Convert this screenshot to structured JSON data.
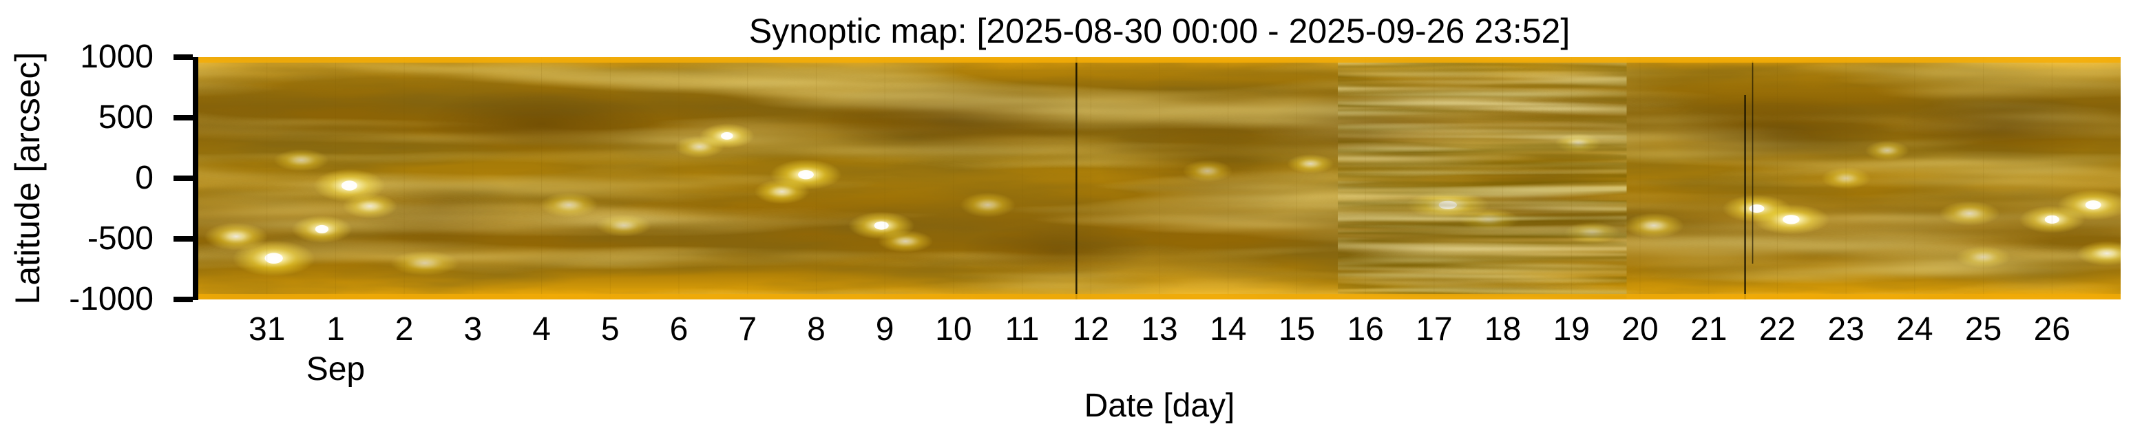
{
  "chart_data": {
    "type": "heatmap",
    "title": "Synoptic map: [2025-08-30 00:00 - 2025-09-26 23:52]",
    "xlabel": "Date [day]",
    "ylabel": "Latitude [arcsec]",
    "x_start": "2025-08-30 00:00",
    "x_end": "2025-09-26 23:52",
    "x_range_days": 28,
    "ylim": [
      -1000,
      1000
    ],
    "grid": false,
    "legend": false,
    "y_ticks": [
      {
        "label": "1000",
        "lat": 1000
      },
      {
        "label": "500",
        "lat": 500
      },
      {
        "label": "0",
        "lat": 0
      },
      {
        "label": "-500",
        "lat": -500
      },
      {
        "label": "-1000",
        "lat": -1000
      }
    ],
    "x_ticks": [
      {
        "label": "31",
        "day": 1
      },
      {
        "label": "1",
        "day": 2
      },
      {
        "label": "2",
        "day": 3
      },
      {
        "label": "3",
        "day": 4
      },
      {
        "label": "4",
        "day": 5
      },
      {
        "label": "5",
        "day": 6
      },
      {
        "label": "6",
        "day": 7
      },
      {
        "label": "7",
        "day": 8
      },
      {
        "label": "8",
        "day": 9
      },
      {
        "label": "9",
        "day": 10
      },
      {
        "label": "10",
        "day": 11
      },
      {
        "label": "11",
        "day": 12
      },
      {
        "label": "12",
        "day": 13
      },
      {
        "label": "13",
        "day": 14
      },
      {
        "label": "14",
        "day": 15
      },
      {
        "label": "15",
        "day": 16
      },
      {
        "label": "16",
        "day": 17
      },
      {
        "label": "17",
        "day": 18
      },
      {
        "label": "18",
        "day": 19
      },
      {
        "label": "19",
        "day": 20
      },
      {
        "label": "20",
        "day": 21
      },
      {
        "label": "21",
        "day": 22
      },
      {
        "label": "22",
        "day": 23
      },
      {
        "label": "23",
        "day": 24
      },
      {
        "label": "24",
        "day": 25
      },
      {
        "label": "25",
        "day": 26
      },
      {
        "label": "26",
        "day": 27
      }
    ],
    "month_label": {
      "text": "Sep",
      "day": 2
    },
    "colors": {
      "background": "#ffffff",
      "axis": "#000000",
      "map_dark": "#8a6205",
      "map_mid": "#b08309",
      "map_bright": "#f2ab07",
      "highlight": "#ffffff",
      "gap_line": "#141000"
    },
    "gradient_stops": [
      {
        "offset": 0.0,
        "color": "#f6b20c"
      },
      {
        "offset": 0.02,
        "color": "#e3a008"
      },
      {
        "offset": 0.055,
        "color": "#b68409"
      },
      {
        "offset": 0.12,
        "color": "#9c7107"
      },
      {
        "offset": 0.2,
        "color": "#8c6406"
      },
      {
        "offset": 0.3,
        "color": "#8e6505"
      },
      {
        "offset": 0.42,
        "color": "#a57a08"
      },
      {
        "offset": 0.5,
        "color": "#ad7f09"
      },
      {
        "offset": 0.58,
        "color": "#a07407"
      },
      {
        "offset": 0.68,
        "color": "#926706"
      },
      {
        "offset": 0.78,
        "color": "#936805"
      },
      {
        "offset": 0.88,
        "color": "#a87a07"
      },
      {
        "offset": 0.95,
        "color": "#cf9608"
      },
      {
        "offset": 0.985,
        "color": "#eca908"
      },
      {
        "offset": 1.0,
        "color": "#f6b20c"
      }
    ],
    "active_regions": [
      {
        "day": 0.55,
        "lat": -480,
        "rx": 46,
        "ry": 20,
        "intensity": 0.85
      },
      {
        "day": 1.1,
        "lat": -660,
        "rx": 60,
        "ry": 26,
        "intensity": 1.0
      },
      {
        "day": 1.5,
        "lat": 150,
        "rx": 40,
        "ry": 16,
        "intensity": 0.6
      },
      {
        "day": 1.8,
        "lat": -420,
        "rx": 44,
        "ry": 20,
        "intensity": 0.9
      },
      {
        "day": 2.2,
        "lat": -60,
        "rx": 52,
        "ry": 24,
        "intensity": 0.95
      },
      {
        "day": 2.5,
        "lat": -230,
        "rx": 40,
        "ry": 18,
        "intensity": 0.8
      },
      {
        "day": 3.3,
        "lat": -700,
        "rx": 50,
        "ry": 18,
        "intensity": 0.6
      },
      {
        "day": 5.4,
        "lat": -220,
        "rx": 42,
        "ry": 18,
        "intensity": 0.65
      },
      {
        "day": 6.2,
        "lat": -390,
        "rx": 40,
        "ry": 16,
        "intensity": 0.6
      },
      {
        "day": 7.3,
        "lat": 260,
        "rx": 36,
        "ry": 16,
        "intensity": 0.7
      },
      {
        "day": 7.7,
        "lat": 350,
        "rx": 40,
        "ry": 18,
        "intensity": 0.95
      },
      {
        "day": 8.5,
        "lat": -110,
        "rx": 40,
        "ry": 18,
        "intensity": 0.8
      },
      {
        "day": 8.85,
        "lat": 30,
        "rx": 52,
        "ry": 22,
        "intensity": 1.0
      },
      {
        "day": 9.95,
        "lat": -390,
        "rx": 48,
        "ry": 20,
        "intensity": 0.95
      },
      {
        "day": 10.3,
        "lat": -520,
        "rx": 40,
        "ry": 16,
        "intensity": 0.7
      },
      {
        "day": 11.5,
        "lat": -220,
        "rx": 40,
        "ry": 18,
        "intensity": 0.6
      },
      {
        "day": 14.7,
        "lat": 60,
        "rx": 36,
        "ry": 16,
        "intensity": 0.55
      },
      {
        "day": 16.2,
        "lat": 120,
        "rx": 34,
        "ry": 14,
        "intensity": 0.7
      },
      {
        "day": 18.2,
        "lat": -220,
        "rx": 60,
        "ry": 20,
        "intensity": 0.9
      },
      {
        "day": 18.8,
        "lat": -340,
        "rx": 44,
        "ry": 16,
        "intensity": 0.7
      },
      {
        "day": 20.1,
        "lat": 290,
        "rx": 34,
        "ry": 14,
        "intensity": 0.75
      },
      {
        "day": 20.3,
        "lat": -450,
        "rx": 40,
        "ry": 16,
        "intensity": 0.7
      },
      {
        "day": 21.2,
        "lat": -390,
        "rx": 44,
        "ry": 18,
        "intensity": 0.75
      },
      {
        "day": 22.7,
        "lat": -250,
        "rx": 50,
        "ry": 20,
        "intensity": 0.9
      },
      {
        "day": 23.2,
        "lat": -340,
        "rx": 56,
        "ry": 22,
        "intensity": 1.0
      },
      {
        "day": 24.0,
        "lat": 0,
        "rx": 36,
        "ry": 16,
        "intensity": 0.6
      },
      {
        "day": 24.6,
        "lat": 230,
        "rx": 32,
        "ry": 14,
        "intensity": 0.6
      },
      {
        "day": 25.8,
        "lat": -290,
        "rx": 44,
        "ry": 18,
        "intensity": 0.7
      },
      {
        "day": 26.0,
        "lat": -650,
        "rx": 40,
        "ry": 16,
        "intensity": 0.6
      },
      {
        "day": 27.0,
        "lat": -340,
        "rx": 48,
        "ry": 20,
        "intensity": 0.9
      },
      {
        "day": 27.6,
        "lat": -220,
        "rx": 52,
        "ry": 22,
        "intensity": 0.95
      },
      {
        "day": 27.8,
        "lat": -620,
        "rx": 44,
        "ry": 18,
        "intensity": 0.85
      }
    ],
    "dark_patches": [
      {
        "day": 5.0,
        "lat": 450,
        "rx": 180,
        "ry": 55,
        "opacity": 0.3
      },
      {
        "day": 11.0,
        "lat": 480,
        "rx": 200,
        "ry": 60,
        "opacity": 0.33
      },
      {
        "day": 14.8,
        "lat": 100,
        "rx": 170,
        "ry": 85,
        "opacity": 0.25
      },
      {
        "day": 17.0,
        "lat": 380,
        "rx": 160,
        "ry": 55,
        "opacity": 0.3
      },
      {
        "day": 23.0,
        "lat": 350,
        "rx": 170,
        "ry": 60,
        "opacity": 0.28
      },
      {
        "day": 26.3,
        "lat": 420,
        "rx": 150,
        "ry": 55,
        "opacity": 0.3
      },
      {
        "day": 3.5,
        "lat": -250,
        "rx": 120,
        "ry": 60,
        "opacity": 0.22
      },
      {
        "day": 12.5,
        "lat": -600,
        "rx": 140,
        "ry": 40,
        "opacity": 0.25
      },
      {
        "day": 19.5,
        "lat": -150,
        "rx": 120,
        "ry": 70,
        "opacity": 0.22
      }
    ],
    "gap_lines": [
      {
        "day": 12.79,
        "y1": 0,
        "y2": 352,
        "width": 2.5,
        "opacity": 0.9
      },
      {
        "day": 22.53,
        "y1": 55,
        "y2": 352,
        "width": 2.5,
        "opacity": 0.85
      },
      {
        "day": 22.64,
        "y1": 5,
        "y2": 300,
        "width": 1.6,
        "opacity": 0.7
      }
    ],
    "artifact_band": {
      "day_start": 16.6,
      "day_end": 20.8
    },
    "day_seams": {
      "color": "#7a5804",
      "opacity": 0.13
    }
  }
}
